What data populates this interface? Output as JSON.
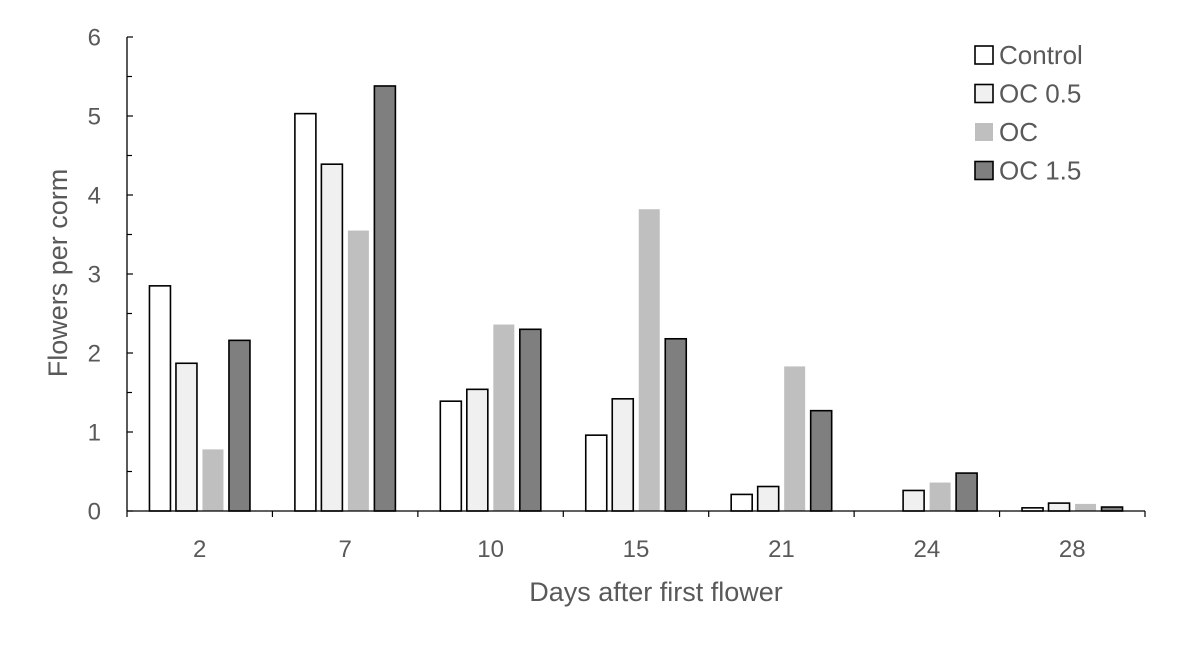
{
  "chart_data": {
    "type": "bar",
    "title": "",
    "xlabel": "Days after first flower",
    "ylabel": "Flowers per corm",
    "ylim": [
      0,
      6
    ],
    "yticks": [
      0,
      1,
      2,
      3,
      4,
      5,
      6
    ],
    "grid": false,
    "legend_position": "top-right",
    "categories": [
      "2",
      "7",
      "10",
      "15",
      "21",
      "24",
      "28"
    ],
    "series": [
      {
        "name": "Control",
        "color": "#ffffff",
        "stroke": "#000000",
        "values": [
          2.85,
          5.03,
          1.39,
          0.96,
          0.21,
          0,
          0.04
        ]
      },
      {
        "name": "OC 0.5",
        "color": "#f0f0f0",
        "stroke": "#000000",
        "values": [
          1.87,
          4.39,
          1.54,
          1.42,
          0.31,
          0.26,
          0.1
        ]
      },
      {
        "name": "OC",
        "color": "#bfbfbf",
        "stroke": "none",
        "values": [
          0.78,
          3.55,
          2.36,
          3.82,
          1.83,
          0.36,
          0.09
        ]
      },
      {
        "name": "OC 1.5",
        "color": "#7f7f7f",
        "stroke": "#000000",
        "values": [
          2.16,
          5.38,
          2.3,
          2.18,
          1.27,
          0.48,
          0.05
        ]
      }
    ]
  }
}
